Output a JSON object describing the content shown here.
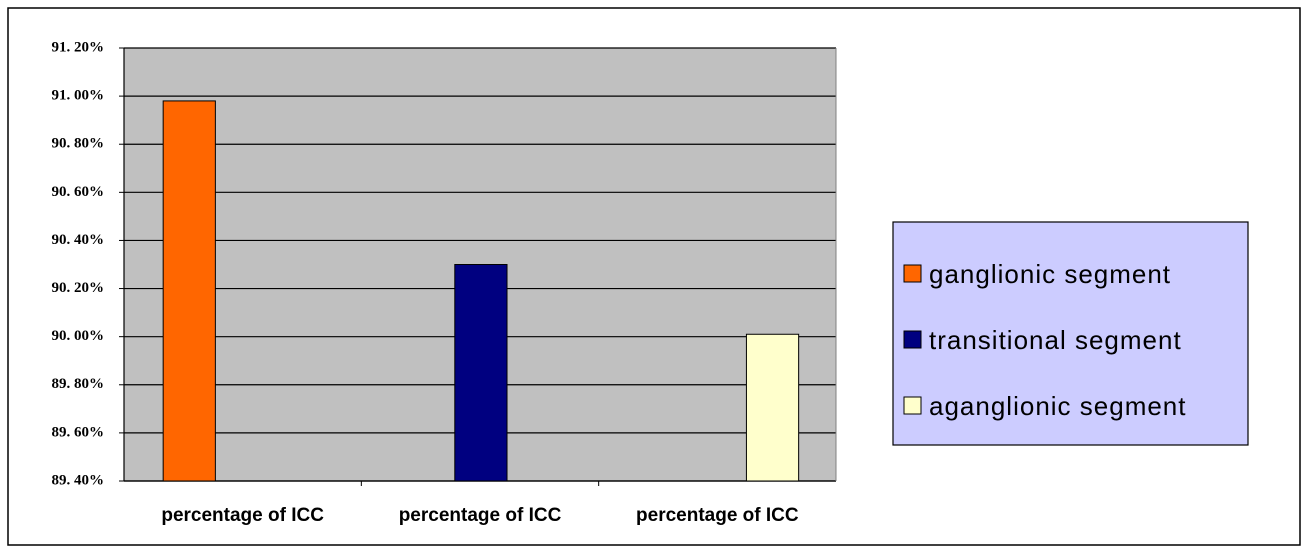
{
  "chart_data": {
    "type": "bar",
    "categories": [
      "percentage of ICC",
      "percentage of ICC",
      "percentage of ICC"
    ],
    "series": [
      {
        "name": "ganglionic segment",
        "color": "#ff6600",
        "values": [
          90.98,
          null,
          null
        ]
      },
      {
        "name": "transitional segment",
        "color": "#000080",
        "values": [
          null,
          90.3,
          null
        ]
      },
      {
        "name": "aganglionic segment",
        "color": "#ffffcc",
        "values": [
          null,
          null,
          90.01
        ]
      }
    ],
    "ylim": [
      89.4,
      91.2
    ],
    "yticks": [
      {
        "value": 89.4,
        "label": "89. 40%"
      },
      {
        "value": 89.6,
        "label": "89. 60%"
      },
      {
        "value": 89.8,
        "label": "89. 80%"
      },
      {
        "value": 90.0,
        "label": "90. 00%"
      },
      {
        "value": 90.2,
        "label": "90. 20%"
      },
      {
        "value": 90.4,
        "label": "90. 40%"
      },
      {
        "value": 90.6,
        "label": "90. 60%"
      },
      {
        "value": 90.8,
        "label": "90. 80%"
      },
      {
        "value": 91.0,
        "label": "91. 00%"
      },
      {
        "value": 91.2,
        "label": "91. 20%"
      }
    ],
    "grid": true,
    "legend": "right"
  }
}
